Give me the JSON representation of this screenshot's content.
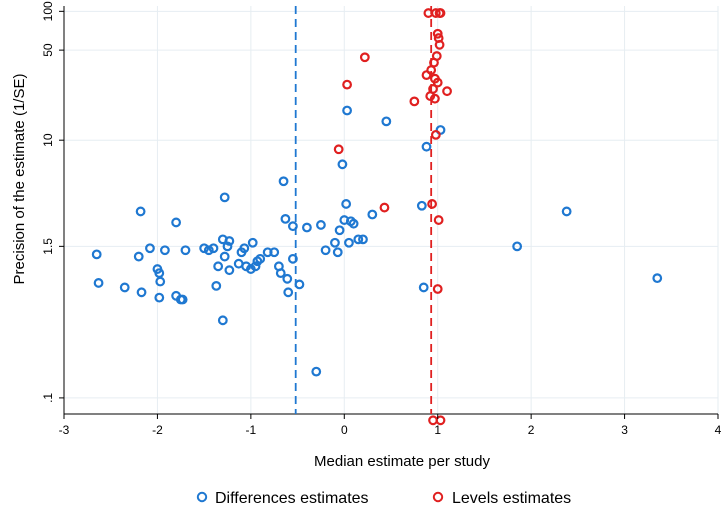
{
  "chart_data": {
    "type": "scatter",
    "xlabel": "Median estimate per study",
    "ylabel": "Precision of the estimate (1/SE)",
    "y_scale": "log",
    "xlim": [
      -3,
      4
    ],
    "ylim": [
      0.075,
      110
    ],
    "x_ticks": [
      -3,
      -2,
      -1,
      0,
      1,
      2,
      3,
      4
    ],
    "x_tick_labels": [
      "-3",
      "-2",
      "-1",
      "0",
      "1",
      "2",
      "3",
      "4"
    ],
    "y_ticks": [
      0.1,
      1.5,
      10,
      50,
      100
    ],
    "y_tick_labels": [
      ".1",
      "1.5",
      "10",
      "50",
      "100"
    ],
    "grid": true,
    "legend_position": "bottom",
    "vlines": [
      {
        "series": "Differences estimates",
        "x": -0.52
      },
      {
        "series": "Levels estimates",
        "x": 0.93
      }
    ],
    "series": [
      {
        "name": "Differences estimates",
        "color": "#1f78d1",
        "points": [
          [
            -2.65,
            1.3
          ],
          [
            -2.63,
            0.78
          ],
          [
            -2.35,
            0.72
          ],
          [
            -2.18,
            2.8
          ],
          [
            -2.2,
            1.25
          ],
          [
            -2.17,
            0.66
          ],
          [
            -2.08,
            1.45
          ],
          [
            -2.0,
            1.0
          ],
          [
            -1.98,
            0.93
          ],
          [
            -1.98,
            0.6
          ],
          [
            -1.97,
            0.8
          ],
          [
            -1.92,
            1.4
          ],
          [
            -1.8,
            2.3
          ],
          [
            -1.8,
            0.62
          ],
          [
            -1.75,
            0.58
          ],
          [
            -1.73,
            0.58
          ],
          [
            -1.7,
            1.4
          ],
          [
            -1.5,
            1.45
          ],
          [
            -1.45,
            1.4
          ],
          [
            -1.4,
            1.45
          ],
          [
            -1.37,
            0.74
          ],
          [
            -1.35,
            1.05
          ],
          [
            -1.3,
            1.7
          ],
          [
            -1.3,
            0.4
          ],
          [
            -1.28,
            1.25
          ],
          [
            -1.28,
            3.6
          ],
          [
            -1.25,
            1.5
          ],
          [
            -1.23,
            1.65
          ],
          [
            -1.23,
            0.98
          ],
          [
            -1.13,
            1.1
          ],
          [
            -1.1,
            1.35
          ],
          [
            -1.07,
            1.45
          ],
          [
            -1.05,
            1.05
          ],
          [
            -1.0,
            1.0
          ],
          [
            -0.98,
            1.6
          ],
          [
            -0.95,
            1.05
          ],
          [
            -0.93,
            1.15
          ],
          [
            -0.9,
            1.2
          ],
          [
            -0.82,
            1.35
          ],
          [
            -0.75,
            1.35
          ],
          [
            -0.7,
            1.05
          ],
          [
            -0.68,
            0.93
          ],
          [
            -0.65,
            4.8
          ],
          [
            -0.63,
            2.45
          ],
          [
            -0.61,
            0.84
          ],
          [
            -0.6,
            0.66
          ],
          [
            -0.55,
            2.15
          ],
          [
            -0.55,
            1.2
          ],
          [
            -0.48,
            0.76
          ],
          [
            -0.4,
            2.1
          ],
          [
            -0.3,
            0.16
          ],
          [
            -0.25,
            2.2
          ],
          [
            -0.2,
            1.4
          ],
          [
            -0.1,
            1.6
          ],
          [
            -0.07,
            1.35
          ],
          [
            -0.05,
            2.0
          ],
          [
            -0.02,
            6.5
          ],
          [
            0.0,
            2.4
          ],
          [
            0.02,
            3.2
          ],
          [
            0.03,
            17
          ],
          [
            0.05,
            1.6
          ],
          [
            0.07,
            2.35
          ],
          [
            0.1,
            2.25
          ],
          [
            0.15,
            1.7
          ],
          [
            0.2,
            1.7
          ],
          [
            0.3,
            2.65
          ],
          [
            0.45,
            14
          ],
          [
            0.83,
            3.1
          ],
          [
            0.85,
            0.72
          ],
          [
            0.88,
            8.9
          ],
          [
            1.03,
            12
          ],
          [
            1.85,
            1.5
          ],
          [
            2.38,
            2.8
          ],
          [
            3.35,
            0.85
          ]
        ]
      },
      {
        "name": "Levels estimates",
        "color": "#e02020",
        "points": [
          [
            -0.06,
            8.5
          ],
          [
            0.03,
            27
          ],
          [
            0.22,
            44
          ],
          [
            0.43,
            3.0
          ],
          [
            0.75,
            20
          ],
          [
            0.88,
            32
          ],
          [
            0.9,
            97
          ],
          [
            0.92,
            22
          ],
          [
            0.93,
            35
          ],
          [
            0.94,
            3.2
          ],
          [
            0.95,
            0.067
          ],
          [
            0.95,
            25
          ],
          [
            0.96,
            40
          ],
          [
            0.97,
            30
          ],
          [
            0.97,
            21
          ],
          [
            0.98,
            11
          ],
          [
            0.98,
            97
          ],
          [
            0.99,
            45
          ],
          [
            1.0,
            28
          ],
          [
            1.0,
            67
          ],
          [
            1.0,
            0.7
          ],
          [
            1.01,
            62
          ],
          [
            1.01,
            2.4
          ],
          [
            1.02,
            97
          ],
          [
            1.02,
            55
          ],
          [
            1.03,
            97
          ],
          [
            1.03,
            0.067
          ],
          [
            1.1,
            24
          ]
        ]
      }
    ]
  },
  "legend": {
    "items": [
      {
        "label": "Differences estimates",
        "color": "#1f78d1"
      },
      {
        "label": "Levels estimates",
        "color": "#e02020"
      }
    ]
  }
}
